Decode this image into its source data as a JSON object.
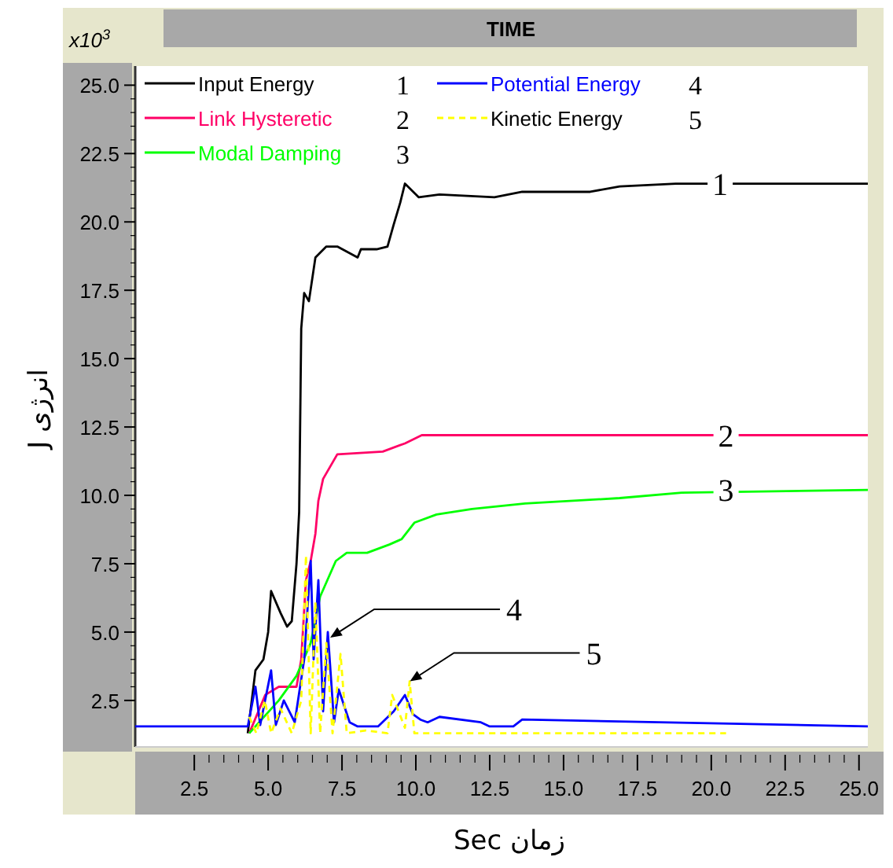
{
  "chart_data": {
    "type": "line",
    "title": "TIME",
    "xlabel": "Sec زمان",
    "ylabel": "J انرژی",
    "xlim": [
      0.5,
      25.3
    ],
    "ylim": [
      0.8,
      25.7
    ],
    "xticks": [
      2.5,
      {
        "value": 5,
        "label": "5.0"
      },
      7.5,
      {
        "value": 10,
        "label": "10.0"
      },
      12.5,
      {
        "value": 15,
        "label": "15.0"
      },
      17.5,
      {
        "value": 20,
        "label": "20.0"
      },
      22.5,
      {
        "value": 25,
        "label": "25.0"
      }
    ],
    "yticks": [
      2.5,
      {
        "value": 5,
        "label": "5.0"
      },
      7.5,
      {
        "value": 10,
        "label": "10.0"
      },
      12.5,
      {
        "value": 15,
        "label": "15.0"
      },
      17.5,
      {
        "value": 20,
        "label": "20.0"
      },
      22.5,
      {
        "value": 25,
        "label": "25.0"
      }
    ],
    "legend": "top left",
    "series": [
      {
        "name": "Input Energy",
        "color": "#000000",
        "x": [
          4.31,
          4.57,
          4.84,
          5.0,
          5.1,
          5.42,
          5.64,
          5.8,
          5.96,
          6.05,
          6.12,
          6.22,
          6.38,
          6.6,
          6.97,
          7.34,
          8.03,
          8.14,
          8.67,
          9.04,
          9.25,
          9.47,
          9.63,
          10.1,
          10.8,
          12.66,
          13.6,
          15.9,
          16.9,
          18.8,
          25.3
        ],
        "values": [
          1.3,
          3.6,
          4.0,
          5.0,
          6.5,
          5.7,
          5.2,
          5.4,
          7.5,
          9.4,
          16.1,
          17.4,
          17.1,
          18.7,
          19.1,
          19.1,
          18.7,
          19.0,
          19.0,
          19.1,
          19.9,
          20.7,
          21.4,
          20.9,
          21.0,
          20.9,
          21.1,
          21.1,
          21.3,
          21.4,
          21.4
        ]
      },
      {
        "name": "Link Hysteretic",
        "color": "#ff0066",
        "x": [
          4.36,
          4.9,
          5.36,
          5.8,
          5.96,
          6.12,
          6.28,
          6.44,
          6.6,
          6.7,
          6.86,
          7.34,
          8.88,
          9.63,
          10.2,
          25.3
        ],
        "values": [
          1.3,
          2.7,
          3.0,
          3.0,
          3.0,
          4.0,
          6.9,
          7.6,
          8.6,
          9.8,
          10.6,
          11.5,
          11.6,
          11.9,
          12.2,
          12.2
        ]
      },
      {
        "name": "Modal Damping",
        "color": "#00ff00",
        "x": [
          4.36,
          5.36,
          5.96,
          6.44,
          6.76,
          7.29,
          7.66,
          8.35,
          9.1,
          9.52,
          9.95,
          10.7,
          11.9,
          13.7,
          16.9,
          19.0,
          25.3
        ],
        "values": [
          1.3,
          2.5,
          3.4,
          4.6,
          6.3,
          7.6,
          7.9,
          7.9,
          8.2,
          8.4,
          9.0,
          9.3,
          9.5,
          9.7,
          9.9,
          10.1,
          10.2
        ]
      },
      {
        "name": "Potential Energy",
        "color": "#0000ff",
        "x": [
          0.5,
          4.31,
          4.57,
          4.73,
          5.1,
          5.26,
          5.53,
          5.9,
          6.22,
          6.44,
          6.54,
          6.7,
          6.86,
          7.02,
          7.23,
          7.39,
          7.76,
          8.03,
          8.72,
          9.25,
          9.63,
          9.9,
          10.15,
          10.4,
          10.8,
          12.2,
          12.5,
          13.3,
          13.6,
          25.3
        ],
        "values": [
          1.55,
          1.55,
          3.0,
          1.6,
          3.6,
          1.6,
          2.5,
          1.7,
          4.0,
          7.6,
          4.0,
          6.9,
          2.1,
          5.0,
          1.7,
          2.9,
          1.7,
          1.55,
          1.55,
          2.1,
          2.7,
          2.0,
          1.8,
          1.7,
          1.9,
          1.7,
          1.55,
          1.55,
          1.8,
          1.55
        ]
      },
      {
        "name": "Kinetic Energy",
        "color": "#ffff00",
        "line_style": "dashed",
        "x": [
          4.36,
          4.6,
          4.89,
          5.1,
          5.42,
          5.8,
          6.12,
          6.28,
          6.44,
          6.6,
          6.76,
          6.97,
          7.18,
          7.45,
          7.66,
          8.3,
          9.04,
          9.2,
          9.63,
          9.79,
          9.95,
          10.6,
          20.5
        ],
        "values": [
          1.9,
          1.3,
          2.5,
          1.3,
          2.2,
          1.3,
          2.5,
          7.8,
          1.3,
          6.1,
          1.3,
          4.6,
          1.3,
          4.2,
          1.3,
          1.4,
          1.3,
          2.7,
          1.5,
          3.2,
          1.3,
          1.3,
          1.3
        ]
      }
    ],
    "annotations": [
      "x10$^{3}$",
      "1",
      "2",
      "3",
      "4",
      "5",
      {
        "text": "1",
        "x": 20.3,
        "y": 21.4
      },
      {
        "text": "2",
        "x": 20.5,
        "y": 12.2
      },
      {
        "text": "3",
        "x": 20.5,
        "y": 10.2
      },
      {
        "text": "4",
        "x": 7.1,
        "y": 4.8
      },
      {
        "text": "5",
        "x": 9.8,
        "y": 3.2
      }
    ]
  }
}
